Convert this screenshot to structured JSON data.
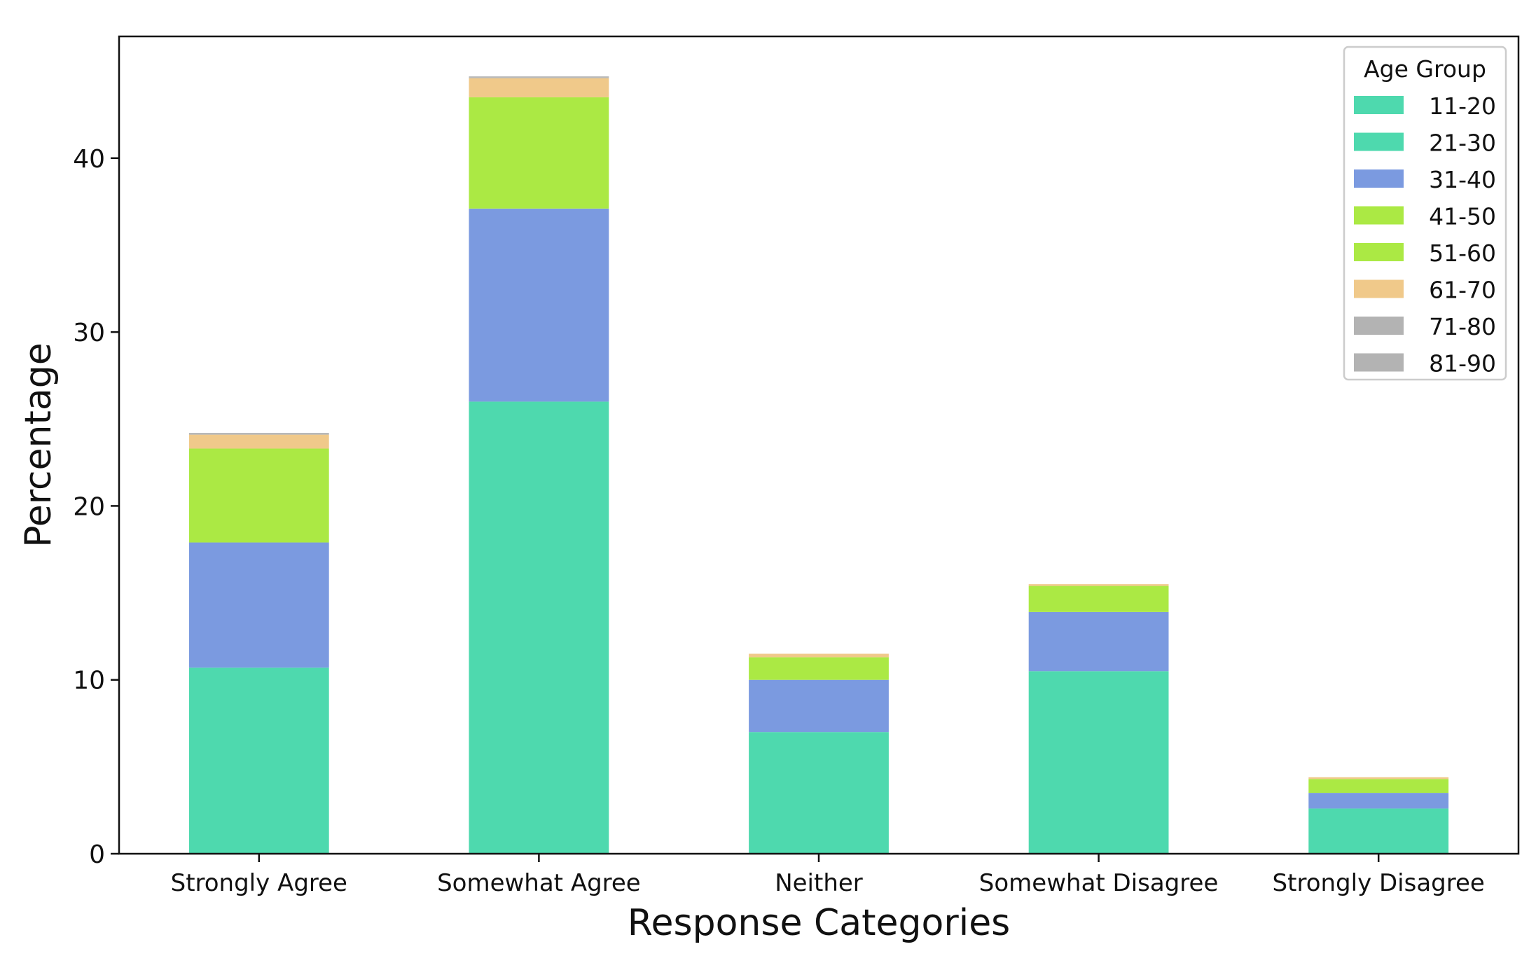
{
  "chart_data": {
    "type": "bar",
    "stacked": true,
    "categories": [
      "Strongly Agree",
      "Somewhat Agree",
      "Neither",
      "Somewhat Disagree",
      "Strongly Disagree"
    ],
    "series": [
      {
        "name": "11-20",
        "color": "#4ed9ae",
        "values": [
          0,
          0,
          0,
          0,
          0
        ]
      },
      {
        "name": "21-30",
        "color": "#4ed9ae",
        "values": [
          10.7,
          26.0,
          7.0,
          10.5,
          2.6
        ]
      },
      {
        "name": "31-40",
        "color": "#7b9ae0",
        "values": [
          7.2,
          11.1,
          3.0,
          3.4,
          0.9
        ]
      },
      {
        "name": "41-50",
        "color": "#abe944",
        "values": [
          0,
          0,
          0,
          0,
          0
        ]
      },
      {
        "name": "51-60",
        "color": "#abe944",
        "values": [
          5.4,
          6.4,
          1.3,
          1.5,
          0.8
        ]
      },
      {
        "name": "61-70",
        "color": "#f0c98a",
        "values": [
          0.8,
          1.1,
          0.2,
          0.1,
          0.1
        ]
      },
      {
        "name": "71-80",
        "color": "#b3b3b3",
        "values": [
          0.1,
          0.05,
          0,
          0,
          0
        ]
      },
      {
        "name": "81-90",
        "color": "#b3b3b3",
        "values": [
          0,
          0.05,
          0,
          0,
          0
        ]
      }
    ],
    "xlabel": "Response Categories",
    "ylabel": "Percentage",
    "ylim": [
      0,
      47
    ],
    "yticks": [
      0,
      10,
      20,
      30,
      40
    ],
    "legend": {
      "title": "Age Group",
      "placement": "top-right"
    },
    "grid": false
  }
}
